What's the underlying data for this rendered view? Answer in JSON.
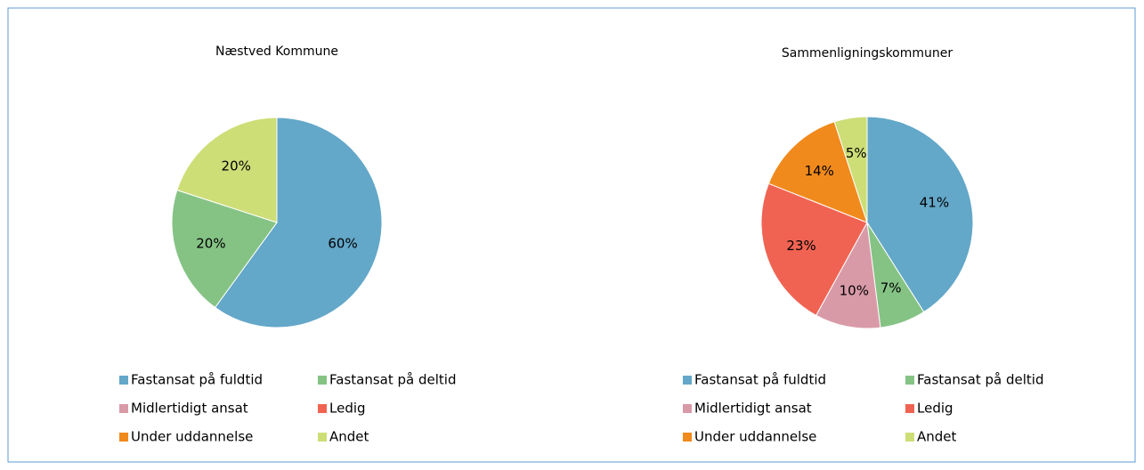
{
  "chart_data": [
    {
      "type": "pie",
      "title": "Næstved Kommune",
      "categories": [
        "Fastansat på fuldtid",
        "Fastansat på deltid",
        "Midlertidigt ansat",
        "Ledig",
        "Under uddannelse",
        "Andet"
      ],
      "values": [
        60,
        20,
        0,
        0,
        0,
        20
      ],
      "value_labels": [
        "60%",
        "20%",
        null,
        null,
        null,
        "20%"
      ],
      "colors": [
        "#63a7c9",
        "#85c385",
        "#d99aa8",
        "#f06352",
        "#f08a1c",
        "#cdde77"
      ]
    },
    {
      "type": "pie",
      "title": "Sammenligningskommuner",
      "categories": [
        "Fastansat på fuldtid",
        "Fastansat på deltid",
        "Midlertidigt ansat",
        "Ledig",
        "Under uddannelse",
        "Andet"
      ],
      "values": [
        41,
        7,
        10,
        23,
        14,
        5
      ],
      "value_labels": [
        "41%",
        "7%",
        "10%",
        "23%",
        "14%",
        "5%"
      ],
      "colors": [
        "#63a7c9",
        "#85c385",
        "#d99aa8",
        "#f06352",
        "#f08a1c",
        "#cdde77"
      ]
    }
  ]
}
